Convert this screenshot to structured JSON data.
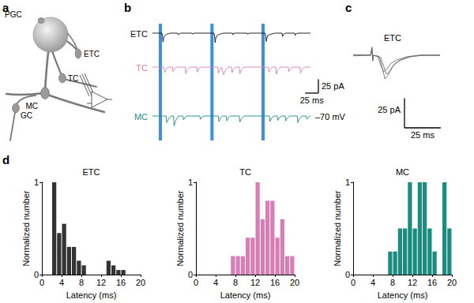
{
  "panel_labels": [
    "a",
    "b",
    "c",
    "d"
  ],
  "diagram": {
    "nodes": [
      {
        "label": "PGC"
      },
      {
        "label": "ETC"
      },
      {
        "label": "TC"
      },
      {
        "label": "MC"
      },
      {
        "label": "GC"
      }
    ]
  },
  "chart_data": [
    {
      "type": "line",
      "xlim": [
        0,
        300
      ],
      "ylim": [
        -40,
        10
      ],
      "tick_labels": false,
      "stimuli": {
        "onsets": [
          12,
          110,
          207
        ],
        "duration": 6,
        "color": "#3d8fe0"
      },
      "scale_bars": {
        "x": 25,
        "y": 25,
        "x_label": "25 ms",
        "y_label": "25 pA"
      },
      "annotations": [
        "–70 mV"
      ],
      "series": [
        {
          "name": "ETC",
          "color": "#111111",
          "values": [
            [
              0,
              0
            ],
            [
              18,
              0
            ],
            [
              19,
              -6
            ],
            [
              20,
              -16
            ],
            [
              21,
              -10
            ],
            [
              23,
              -5
            ],
            [
              27,
              -2
            ],
            [
              34,
              0
            ],
            [
              48,
              0
            ],
            [
              49,
              -3
            ],
            [
              51,
              -1
            ],
            [
              54,
              0
            ],
            [
              75,
              0
            ],
            [
              76,
              -2
            ],
            [
              78,
              0
            ],
            [
              117,
              0
            ],
            [
              118,
              -7
            ],
            [
              119,
              -17
            ],
            [
              120,
              -10
            ],
            [
              122,
              -5
            ],
            [
              127,
              -2
            ],
            [
              135,
              0
            ],
            [
              152,
              0
            ],
            [
              153,
              -3
            ],
            [
              155,
              0
            ],
            [
              180,
              0
            ],
            [
              181,
              -2
            ],
            [
              183,
              0
            ],
            [
              214,
              0
            ],
            [
              215,
              -6
            ],
            [
              216,
              -15
            ],
            [
              217,
              -9
            ],
            [
              219,
              -4
            ],
            [
              224,
              -2
            ],
            [
              232,
              0
            ],
            [
              246,
              0
            ],
            [
              247,
              -6
            ],
            [
              249,
              -2
            ],
            [
              253,
              0
            ],
            [
              270,
              0
            ],
            [
              271,
              -4
            ],
            [
              273,
              -1
            ],
            [
              276,
              0
            ],
            [
              300,
              0
            ]
          ]
        },
        {
          "name": "TC",
          "color": "#d67fb4",
          "values": [
            [
              0,
              0
            ],
            [
              22,
              0
            ],
            [
              23,
              -10
            ],
            [
              26,
              -4
            ],
            [
              30,
              0
            ],
            [
              38,
              0
            ],
            [
              39,
              -8
            ],
            [
              42,
              -3
            ],
            [
              46,
              0
            ],
            [
              62,
              0
            ],
            [
              63,
              -12
            ],
            [
              66,
              -5
            ],
            [
              71,
              0
            ],
            [
              84,
              0
            ],
            [
              85,
              -9
            ],
            [
              88,
              -3
            ],
            [
              92,
              0
            ],
            [
              124,
              0
            ],
            [
              125,
              -11
            ],
            [
              128,
              -5
            ],
            [
              131,
              0
            ],
            [
              135,
              -14
            ],
            [
              138,
              -6
            ],
            [
              143,
              0
            ],
            [
              150,
              0
            ],
            [
              151,
              -10
            ],
            [
              154,
              -4
            ],
            [
              158,
              0
            ],
            [
              165,
              0
            ],
            [
              166,
              -12
            ],
            [
              169,
              -5
            ],
            [
              174,
              0
            ],
            [
              220,
              0
            ],
            [
              221,
              -9
            ],
            [
              224,
              -4
            ],
            [
              228,
              0
            ],
            [
              234,
              0
            ],
            [
              235,
              -13
            ],
            [
              238,
              -5
            ],
            [
              243,
              0
            ],
            [
              258,
              0
            ],
            [
              259,
              -8
            ],
            [
              262,
              -3
            ],
            [
              266,
              0
            ],
            [
              280,
              0
            ],
            [
              281,
              -11
            ],
            [
              284,
              -4
            ],
            [
              289,
              0
            ],
            [
              300,
              0
            ]
          ]
        },
        {
          "name": "MC",
          "color": "#1b8c80",
          "values": [
            [
              0,
              0
            ],
            [
              26,
              0
            ],
            [
              27,
              -12
            ],
            [
              30,
              -6
            ],
            [
              35,
              0
            ],
            [
              40,
              0
            ],
            [
              41,
              -18
            ],
            [
              44,
              -8
            ],
            [
              50,
              0
            ],
            [
              58,
              0
            ],
            [
              59,
              -7
            ],
            [
              62,
              -2
            ],
            [
              66,
              0
            ],
            [
              90,
              0
            ],
            [
              91,
              -6
            ],
            [
              94,
              -2
            ],
            [
              98,
              0
            ],
            [
              125,
              0
            ],
            [
              126,
              -10
            ],
            [
              129,
              -4
            ],
            [
              133,
              0
            ],
            [
              140,
              0
            ],
            [
              141,
              -9
            ],
            [
              144,
              -3
            ],
            [
              148,
              0
            ],
            [
              165,
              0
            ],
            [
              166,
              -11
            ],
            [
              169,
              -5
            ],
            [
              174,
              0
            ],
            [
              222,
              0
            ],
            [
              223,
              -10
            ],
            [
              226,
              -4
            ],
            [
              231,
              0
            ],
            [
              237,
              0
            ],
            [
              238,
              -8
            ],
            [
              241,
              -3
            ],
            [
              246,
              0
            ],
            [
              252,
              0
            ],
            [
              253,
              -9
            ],
            [
              256,
              -4
            ],
            [
              260,
              0
            ],
            [
              275,
              0
            ],
            [
              276,
              -12
            ],
            [
              279,
              -5
            ],
            [
              284,
              0
            ],
            [
              292,
              0
            ],
            [
              293,
              -6
            ],
            [
              296,
              -2
            ],
            [
              300,
              0
            ]
          ]
        }
      ]
    },
    {
      "type": "line",
      "title": "ETC",
      "xlim": [
        0,
        60
      ],
      "ylim": [
        -30,
        10
      ],
      "tick_labels": false,
      "scale_bars": {
        "x": 25,
        "y": 25,
        "x_label": "25 ms",
        "y_label": "25 pA"
      },
      "series": [
        {
          "color": "#6e6e6e",
          "values": [
            [
              0,
              0
            ],
            [
              12,
              0
            ],
            [
              13,
              6
            ],
            [
              13.5,
              -4
            ],
            [
              14,
              0
            ],
            [
              18,
              -1
            ],
            [
              20,
              -10
            ],
            [
              22,
              -20
            ],
            [
              24,
              -17
            ],
            [
              27,
              -10
            ],
            [
              31,
              -5
            ],
            [
              37,
              -2
            ],
            [
              45,
              0
            ],
            [
              60,
              0
            ]
          ]
        },
        {
          "color": "#6e6e6e",
          "values": [
            [
              0,
              0.5
            ],
            [
              12,
              0
            ],
            [
              13,
              5
            ],
            [
              13.5,
              -3
            ],
            [
              14,
              0
            ],
            [
              19,
              -2
            ],
            [
              21,
              -9
            ],
            [
              23,
              -16
            ],
            [
              25,
              -14
            ],
            [
              28,
              -8
            ],
            [
              33,
              -4
            ],
            [
              40,
              -1
            ],
            [
              50,
              0
            ],
            [
              60,
              0
            ]
          ]
        },
        {
          "color": "#6e6e6e",
          "values": [
            [
              0,
              -0.5
            ],
            [
              12,
              0
            ],
            [
              13,
              7
            ],
            [
              13.5,
              -5
            ],
            [
              14,
              0
            ],
            [
              17,
              -1
            ],
            [
              19,
              -8
            ],
            [
              21,
              -14
            ],
            [
              23,
              -12
            ],
            [
              26,
              -7
            ],
            [
              30,
              -4
            ],
            [
              38,
              -1
            ],
            [
              48,
              0
            ],
            [
              60,
              0
            ]
          ]
        }
      ]
    },
    {
      "type": "histogram",
      "title": "ETC",
      "xlabel": "Latency (ms)",
      "ylabel": "Normalized number",
      "bins": [
        0,
        1,
        2,
        3,
        4,
        5,
        6,
        7,
        8,
        9,
        10,
        11,
        12,
        13,
        14,
        15,
        16,
        17,
        18,
        19,
        20
      ],
      "values": [
        0,
        0,
        1.0,
        0.45,
        0.55,
        0.3,
        0.3,
        0.15,
        0.1,
        0,
        0,
        0,
        0,
        0.15,
        0.1,
        0.05,
        0.05,
        0,
        0,
        0
      ],
      "color": "#333333",
      "xlim": [
        0,
        20
      ],
      "xticks": [
        0,
        4,
        8,
        12,
        16,
        20
      ],
      "ylim": [
        0,
        1
      ],
      "yticks": [
        0,
        1
      ],
      "grid": false
    },
    {
      "type": "histogram",
      "title": "TC",
      "xlabel": "Latency (ms)",
      "ylabel": "Normalized number",
      "bins": [
        0,
        1,
        2,
        3,
        4,
        5,
        6,
        7,
        8,
        9,
        10,
        11,
        12,
        13,
        14,
        15,
        16,
        17,
        18,
        19,
        20
      ],
      "values": [
        0,
        0,
        0,
        0,
        0,
        0,
        0,
        0.2,
        0.2,
        0.2,
        0.4,
        0.4,
        1.0,
        0.6,
        0.8,
        0.8,
        0.4,
        0.6,
        0.2,
        0.2
      ],
      "color": "#d67fb4",
      "xlim": [
        0,
        20
      ],
      "xticks": [
        0,
        4,
        8,
        12,
        16,
        20
      ],
      "ylim": [
        0,
        1
      ],
      "yticks": [
        0,
        1
      ],
      "grid": false
    },
    {
      "type": "histogram",
      "title": "MC",
      "xlabel": "Latency (ms)",
      "ylabel": "Normalized number",
      "bins": [
        0,
        1,
        2,
        3,
        4,
        5,
        6,
        7,
        8,
        9,
        10,
        11,
        12,
        13,
        14,
        15,
        16,
        17,
        18,
        19,
        20
      ],
      "values": [
        0,
        0,
        0,
        0,
        0,
        0,
        0,
        0.25,
        0.25,
        0.5,
        0.5,
        1.0,
        0.5,
        1.0,
        1.0,
        0.5,
        0.25,
        0,
        1.0,
        0.5
      ],
      "color": "#1b8c80",
      "xlim": [
        0,
        20
      ],
      "xticks": [
        0,
        4,
        8,
        12,
        16,
        20
      ],
      "ylim": [
        0,
        1
      ],
      "yticks": [
        0,
        1
      ],
      "grid": false
    }
  ]
}
